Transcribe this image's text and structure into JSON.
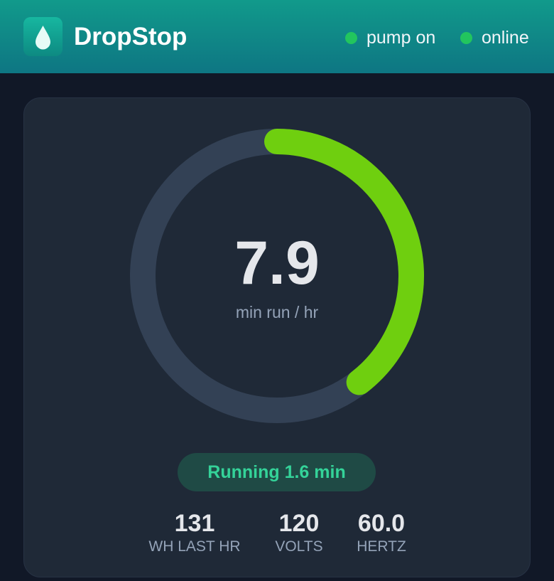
{
  "header": {
    "title": "DropStop",
    "status": [
      {
        "label": "pump on",
        "color": "#22c55e"
      },
      {
        "label": "online",
        "color": "#22c55e"
      }
    ]
  },
  "gauge": {
    "value": 7.9,
    "unit": "min run / hr",
    "range": [
      0,
      20
    ],
    "color": "#6fcf0f",
    "track_color": "#334155"
  },
  "badge": "Running 1.6 min",
  "stats": [
    {
      "value": 131,
      "label": "WH LAST HR"
    },
    {
      "value": 120,
      "label": "VOLTS"
    },
    {
      "value": "60.0",
      "label": "HERTZ"
    }
  ]
}
